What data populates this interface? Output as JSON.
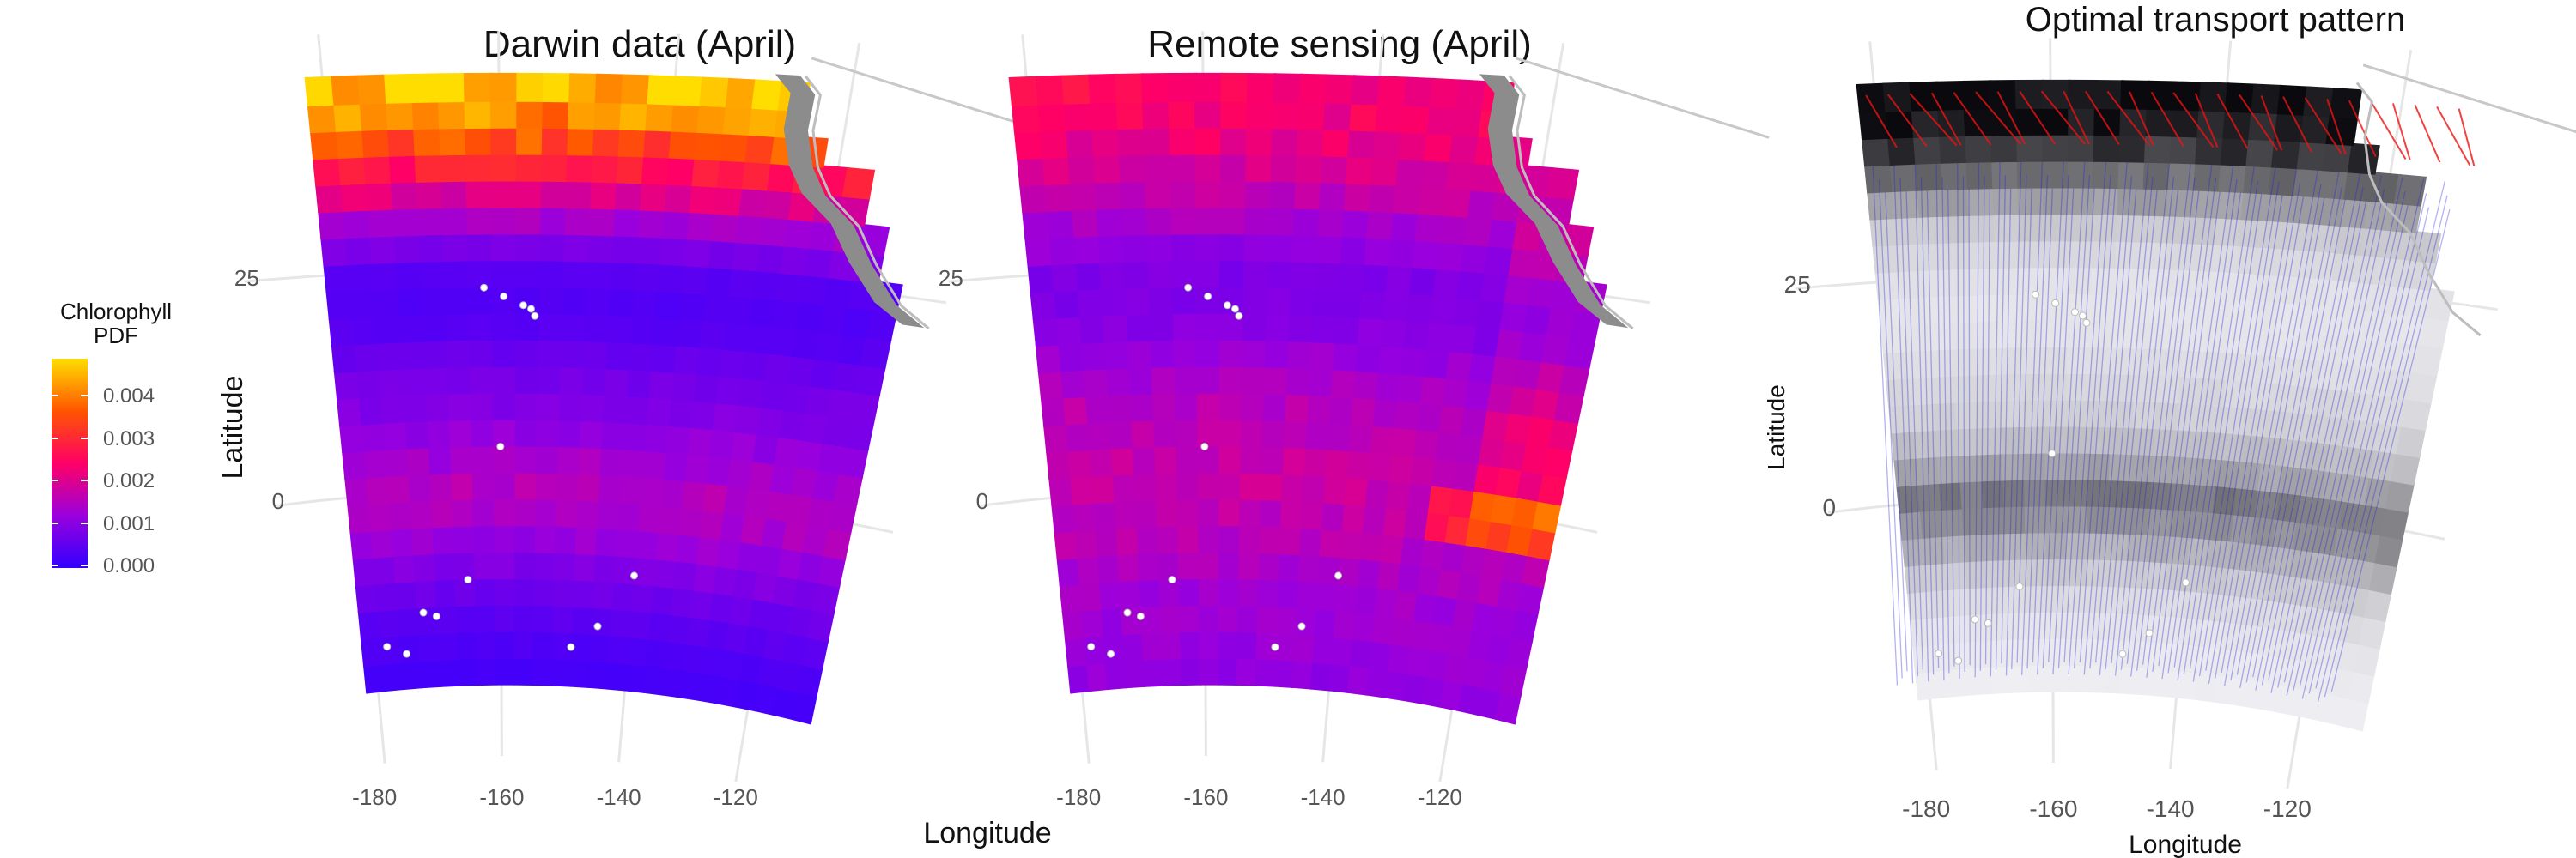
{
  "figure": {
    "colors": {
      "palette_low": "#3300ff",
      "palette_mid": "#ff0066",
      "palette_high": "#ffdd00",
      "land": "#8c8c8c",
      "coast": "#bdbdbd",
      "grid": "#e6e6e6",
      "transport_line": "#2222dd",
      "transport_red": "#ee1111"
    }
  },
  "legend": {
    "title_line1": "Chlorophyll",
    "title_line2": "PDF",
    "labels": [
      "0.004",
      "0.003",
      "0.002",
      "0.001",
      "0.000"
    ]
  },
  "chart_data": [
    {
      "type": "heatmap",
      "title": "Darwin data (April)",
      "xlabel": "Longitude",
      "ylabel": "Latitude",
      "x_ticks": [
        "-180",
        "-160",
        "-140",
        "-120"
      ],
      "y_ticks": [
        "25",
        "0"
      ],
      "xlim": [
        -185,
        -110
      ],
      "ylim": [
        -25,
        50
      ],
      "latitude_profile": [
        {
          "lat": 45,
          "value": 0.0041
        },
        {
          "lat": 40,
          "value": 0.0032
        },
        {
          "lat": 35,
          "value": 0.0021
        },
        {
          "lat": 30,
          "value": 0.0011
        },
        {
          "lat": 25,
          "value": 0.0004
        },
        {
          "lat": 20,
          "value": 0.0003
        },
        {
          "lat": 15,
          "value": 0.0006
        },
        {
          "lat": 10,
          "value": 0.0008
        },
        {
          "lat": 5,
          "value": 0.0011
        },
        {
          "lat": 0,
          "value": 0.0014
        },
        {
          "lat": -5,
          "value": 0.0011
        },
        {
          "lat": -10,
          "value": 0.0007
        },
        {
          "lat": -15,
          "value": 0.0004
        },
        {
          "lat": -20,
          "value": 0.0002
        }
      ]
    },
    {
      "type": "heatmap",
      "title": "Remote sensing (April)",
      "xlabel": "Longitude",
      "ylabel": "Latitude",
      "x_ticks": [
        "-180",
        "-160",
        "-140",
        "-120"
      ],
      "y_ticks": [
        "25",
        "0"
      ],
      "xlim": [
        -185,
        -110
      ],
      "ylim": [
        -25,
        50
      ],
      "latitude_profile": [
        {
          "lat": 45,
          "value": 0.0021
        },
        {
          "lat": 40,
          "value": 0.002
        },
        {
          "lat": 35,
          "value": 0.0016
        },
        {
          "lat": 30,
          "value": 0.0012
        },
        {
          "lat": 25,
          "value": 0.0008
        },
        {
          "lat": 20,
          "value": 0.0008
        },
        {
          "lat": 15,
          "value": 0.0011
        },
        {
          "lat": 10,
          "value": 0.0014
        },
        {
          "lat": 5,
          "value": 0.0015
        },
        {
          "lat": 0,
          "value": 0.0016
        },
        {
          "lat": -5,
          "value": 0.0014
        },
        {
          "lat": -10,
          "value": 0.0012
        },
        {
          "lat": -15,
          "value": 0.0011
        },
        {
          "lat": -20,
          "value": 0.001
        }
      ]
    },
    {
      "type": "heatmap",
      "title": "Optimal transport pattern",
      "xlabel": "Longitude",
      "ylabel": "Latitude",
      "x_ticks": [
        "-180",
        "-160",
        "-140",
        "-120"
      ],
      "y_ticks": [
        "25",
        "0"
      ],
      "xlim": [
        -185,
        -110
      ],
      "ylim": [
        -25,
        50
      ],
      "mass_profile": [
        {
          "lat": 45,
          "value": 1.0
        },
        {
          "lat": 40,
          "value": 0.85
        },
        {
          "lat": 35,
          "value": 0.45
        },
        {
          "lat": 30,
          "value": 0.15
        },
        {
          "lat": 25,
          "value": 0.08
        },
        {
          "lat": 20,
          "value": 0.06
        },
        {
          "lat": 15,
          "value": 0.1
        },
        {
          "lat": 10,
          "value": 0.14
        },
        {
          "lat": 5,
          "value": 0.25
        },
        {
          "lat": 0,
          "value": 0.55
        },
        {
          "lat": -5,
          "value": 0.3
        },
        {
          "lat": -10,
          "value": 0.12
        },
        {
          "lat": -15,
          "value": 0.06
        },
        {
          "lat": -20,
          "value": 0.03
        }
      ]
    }
  ]
}
